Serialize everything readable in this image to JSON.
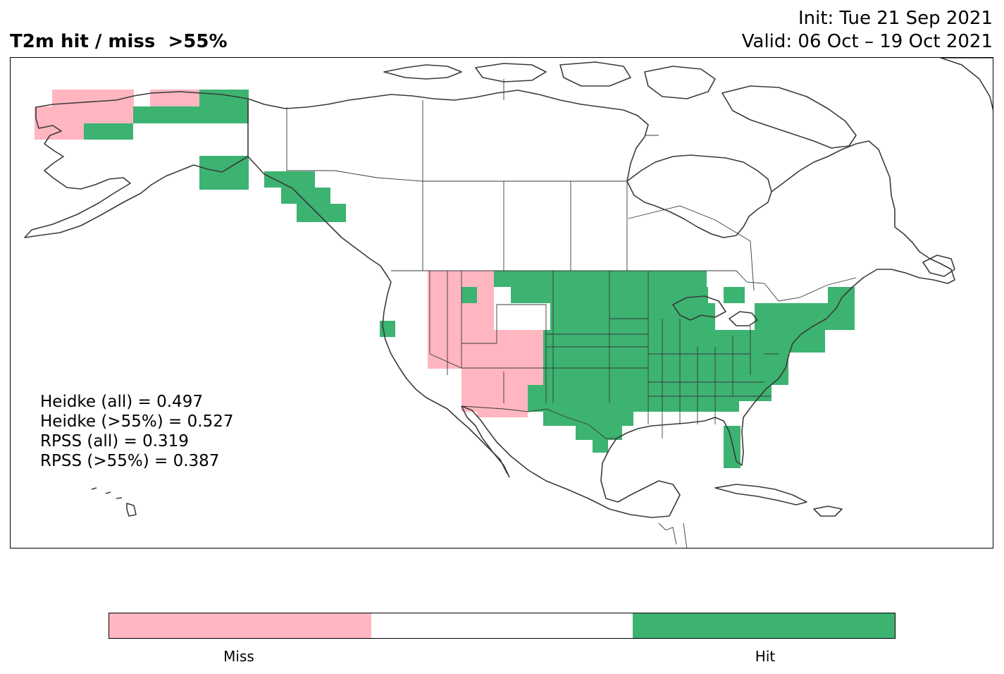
{
  "title": "T2m hit / miss  >55%",
  "init_line": "Init: Tue 21 Sep 2021",
  "valid_line": "Valid: 06 Oct – 19 Oct 2021",
  "stats": [
    "Heidke (all) = 0.497",
    "Heidke (>55%) = 0.527",
    "RPSS (all) = 0.319",
    "RPSS (>55%) = 0.387"
  ],
  "colors": {
    "miss": "#ffb6c1",
    "hit": "#3cb371",
    "neutral": "#ffffff",
    "coast": "#3a3a3a"
  },
  "colorbar": {
    "labels": [
      "Miss",
      "Hit"
    ]
  },
  "chart_data": {
    "type": "heatmap",
    "region": "North America",
    "variable": "T2m",
    "categories": [
      "Miss",
      "Hit"
    ],
    "regions_shown": [
      {
        "area": "Western Alaska",
        "value": "Miss"
      },
      {
        "area": "Northern Alaska",
        "value": "Hit"
      },
      {
        "area": "Southeast Alaska",
        "value": "Hit"
      },
      {
        "area": "Idaho / Utah / Arizona / western Montana",
        "value": "Miss"
      },
      {
        "area": "Wyoming / Colorado / New Mexico",
        "value": "Miss"
      },
      {
        "area": "Central US / Great Plains",
        "value": "Hit"
      },
      {
        "area": "Eastern US",
        "value": "Hit"
      },
      {
        "area": "Northern California coast",
        "value": "Hit"
      }
    ]
  }
}
